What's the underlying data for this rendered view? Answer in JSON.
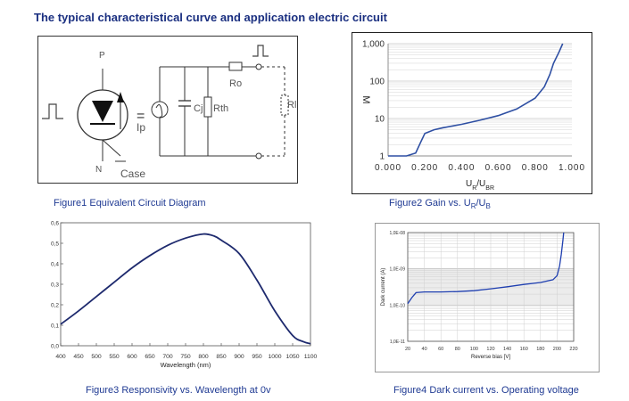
{
  "page": {
    "title": "The typical characteristical curve and application electric circuit"
  },
  "figure1": {
    "caption": "Figure1 Equivalent Circuit Diagram",
    "labels": {
      "p": "P",
      "n": "N",
      "case": "Case",
      "eq": "=",
      "ip": "Ip",
      "cj": "Cj",
      "rth": "Rth",
      "ro": "Ro",
      "rl": "Rl"
    }
  },
  "figure2": {
    "caption_prefix": "Figure2 Gain vs. U",
    "caption_sub1": "R",
    "caption_mid": "/U",
    "caption_sub2": "B",
    "chart_data": {
      "type": "line",
      "ylabel": "M",
      "xlabel_main": "U",
      "xlabel_sub1": "R",
      "xlabel_mid": "/U",
      "xlabel_sub2": "BR",
      "yscale": "log",
      "ylim": [
        1,
        1000
      ],
      "xlim": [
        0.0,
        1.0
      ],
      "xticks": [
        "0.000",
        "0.200",
        "0.400",
        "0.600",
        "0.800",
        "1.000"
      ],
      "yticks": [
        "1",
        "10",
        "100",
        "1,000"
      ],
      "grid": true,
      "x": [
        0.0,
        0.1,
        0.15,
        0.18,
        0.2,
        0.25,
        0.3,
        0.4,
        0.5,
        0.6,
        0.7,
        0.8,
        0.85,
        0.88,
        0.9,
        0.93,
        0.95
      ],
      "y": [
        1.0,
        1.0,
        1.2,
        2.5,
        4.0,
        5.0,
        5.7,
        7.0,
        9.0,
        12.0,
        18.0,
        35.0,
        70.0,
        150.0,
        300.0,
        600.0,
        1000.0
      ]
    }
  },
  "figure3": {
    "caption": "Figure3    Responsivity vs. Wavelength at 0v",
    "chart_data": {
      "type": "line",
      "xlabel": "Wavelength (nm)",
      "ylabel": "Responsivity (A/W)",
      "xlim": [
        400,
        1100
      ],
      "ylim": [
        0.0,
        0.6
      ],
      "xticks": [
        "400",
        "450",
        "500",
        "550",
        "600",
        "650",
        "700",
        "750",
        "800",
        "850",
        "900",
        "950",
        "1000",
        "1050",
        "1100"
      ],
      "yticks": [
        "0,0",
        "0,1",
        "0,2",
        "0,3",
        "0,4",
        "0,5",
        "0,6"
      ],
      "grid": false,
      "x": [
        400,
        450,
        500,
        550,
        600,
        650,
        700,
        750,
        800,
        830,
        850,
        900,
        950,
        1000,
        1050,
        1080,
        1100
      ],
      "y": [
        0.105,
        0.17,
        0.24,
        0.31,
        0.38,
        0.44,
        0.49,
        0.525,
        0.545,
        0.535,
        0.515,
        0.45,
        0.32,
        0.17,
        0.05,
        0.02,
        0.01
      ]
    }
  },
  "figure4": {
    "caption": "Figure4    Dark current vs. Operating voltage",
    "chart_data": {
      "type": "line",
      "xlabel": "Reverse bias [V]",
      "ylabel": "Dark current  (A)",
      "yscale": "log",
      "xlim": [
        20,
        220
      ],
      "ylim": [
        1e-11,
        1e-08
      ],
      "xticks": [
        "20",
        "40",
        "60",
        "80",
        "100",
        "120",
        "140",
        "160",
        "180",
        "200",
        "220"
      ],
      "yticks": [
        "1,0E-11",
        "1,0E-10",
        "1,0E-09",
        "1,0E-08"
      ],
      "grid": true,
      "x": [
        20,
        25,
        30,
        40,
        60,
        80,
        100,
        120,
        140,
        160,
        180,
        195,
        200,
        203,
        205,
        207,
        208
      ],
      "y": [
        1.1e-10,
        1.6e-10,
        2.2e-10,
        2.3e-10,
        2.3e-10,
        2.35e-10,
        2.5e-10,
        2.8e-10,
        3.2e-10,
        3.7e-10,
        4.2e-10,
        5e-10,
        6.5e-10,
        1.2e-09,
        2.5e-09,
        6e-09,
        1e-08
      ]
    }
  }
}
